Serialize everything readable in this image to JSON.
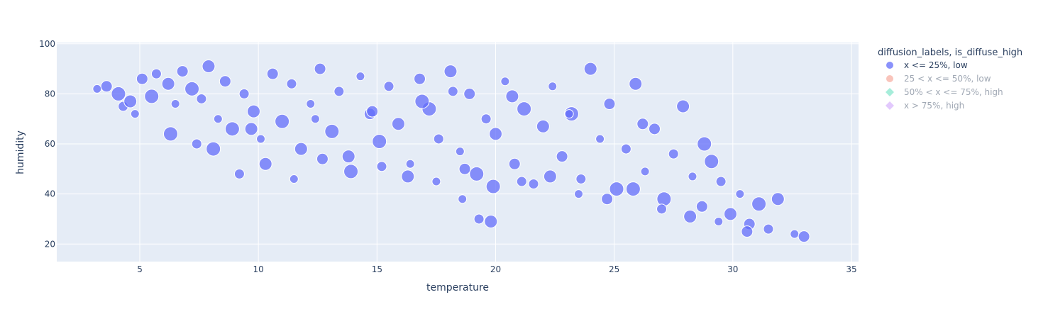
{
  "chart_data": {
    "type": "scatter",
    "xlabel": "temperature",
    "ylabel": "humidity",
    "xlim": [
      1.5,
      35.3
    ],
    "ylim": [
      13,
      100.5
    ],
    "x_ticks": [
      5,
      10,
      15,
      20,
      25,
      30,
      35
    ],
    "y_ticks": [
      20,
      40,
      60,
      80,
      100
    ],
    "grid": true,
    "legend": {
      "title": "diffusion_labels, is_diffuse_high",
      "placement": "right",
      "entries": [
        {
          "label": "x <= 25%, low",
          "color": "#636efa",
          "symbol": "circle",
          "visible": true
        },
        {
          "label": "25 < x <= 50%, low",
          "color": "#ef553b",
          "symbol": "circle",
          "visible": false
        },
        {
          "label": "50% < x <= 75%, high",
          "color": "#00cc96",
          "symbol": "diamond",
          "visible": false
        },
        {
          "label": "x > 75%, high",
          "color": "#ab63fa",
          "symbol": "diamond",
          "visible": false
        }
      ]
    },
    "series": [
      {
        "name": "x <= 25%, low",
        "color": "#636efa",
        "x": [
          3.2,
          3.6,
          4.1,
          4.3,
          4.6,
          4.8,
          5.1,
          5.5,
          5.7,
          6.2,
          6.5,
          6.8,
          7.2,
          7.6,
          7.9,
          8.3,
          8.6,
          8.9,
          9.4,
          9.8,
          10.1,
          10.6,
          11.0,
          11.4,
          11.8,
          12.2,
          12.6,
          13.1,
          13.4,
          13.8,
          14.3,
          14.7,
          15.1,
          15.5,
          15.9,
          16.4,
          16.8,
          17.2,
          17.6,
          18.1,
          18.5,
          18.9,
          19.2,
          19.6,
          20.0,
          20.4,
          20.8,
          21.2,
          21.6,
          22.0,
          22.4,
          22.8,
          23.2,
          23.6,
          24.0,
          24.4,
          24.8,
          25.1,
          25.5,
          25.9,
          26.3,
          26.7,
          27.1,
          27.5,
          27.9,
          28.3,
          28.7,
          29.1,
          29.5,
          29.9,
          30.3,
          30.7,
          31.1,
          31.5,
          31.9,
          32.6,
          33.0,
          8.1,
          9.2,
          10.3,
          11.5,
          12.7,
          13.9,
          15.2,
          16.3,
          17.5,
          18.7,
          19.9,
          21.1,
          22.3,
          23.5,
          24.7,
          25.8,
          27.0,
          28.2,
          29.4,
          30.6,
          6.3,
          7.4,
          9.7,
          12.4,
          14.8,
          16.9,
          18.2,
          20.7,
          23.1,
          26.2,
          28.8,
          19.3,
          19.8,
          18.6
        ],
        "y": [
          82,
          83,
          80,
          75,
          77,
          72,
          86,
          79,
          88,
          84,
          76,
          89,
          82,
          78,
          91,
          70,
          85,
          66,
          80,
          73,
          62,
          88,
          69,
          84,
          58,
          76,
          90,
          65,
          81,
          55,
          87,
          72,
          61,
          83,
          68,
          52,
          86,
          74,
          62,
          89,
          57,
          80,
          48,
          70,
          64,
          85,
          52,
          74,
          44,
          67,
          83,
          55,
          72,
          46,
          90,
          62,
          76,
          42,
          58,
          84,
          49,
          66,
          38,
          56,
          75,
          47,
          35,
          53,
          45,
          32,
          40,
          28,
          36,
          26,
          38,
          24,
          23,
          58,
          48,
          52,
          46,
          54,
          49,
          51,
          47,
          45,
          50,
          43,
          45,
          47,
          40,
          38,
          42,
          34,
          31,
          29,
          25,
          64,
          60,
          66,
          70,
          73,
          77,
          81,
          79,
          72,
          68,
          60,
          30,
          29,
          38
        ]
      }
    ]
  }
}
